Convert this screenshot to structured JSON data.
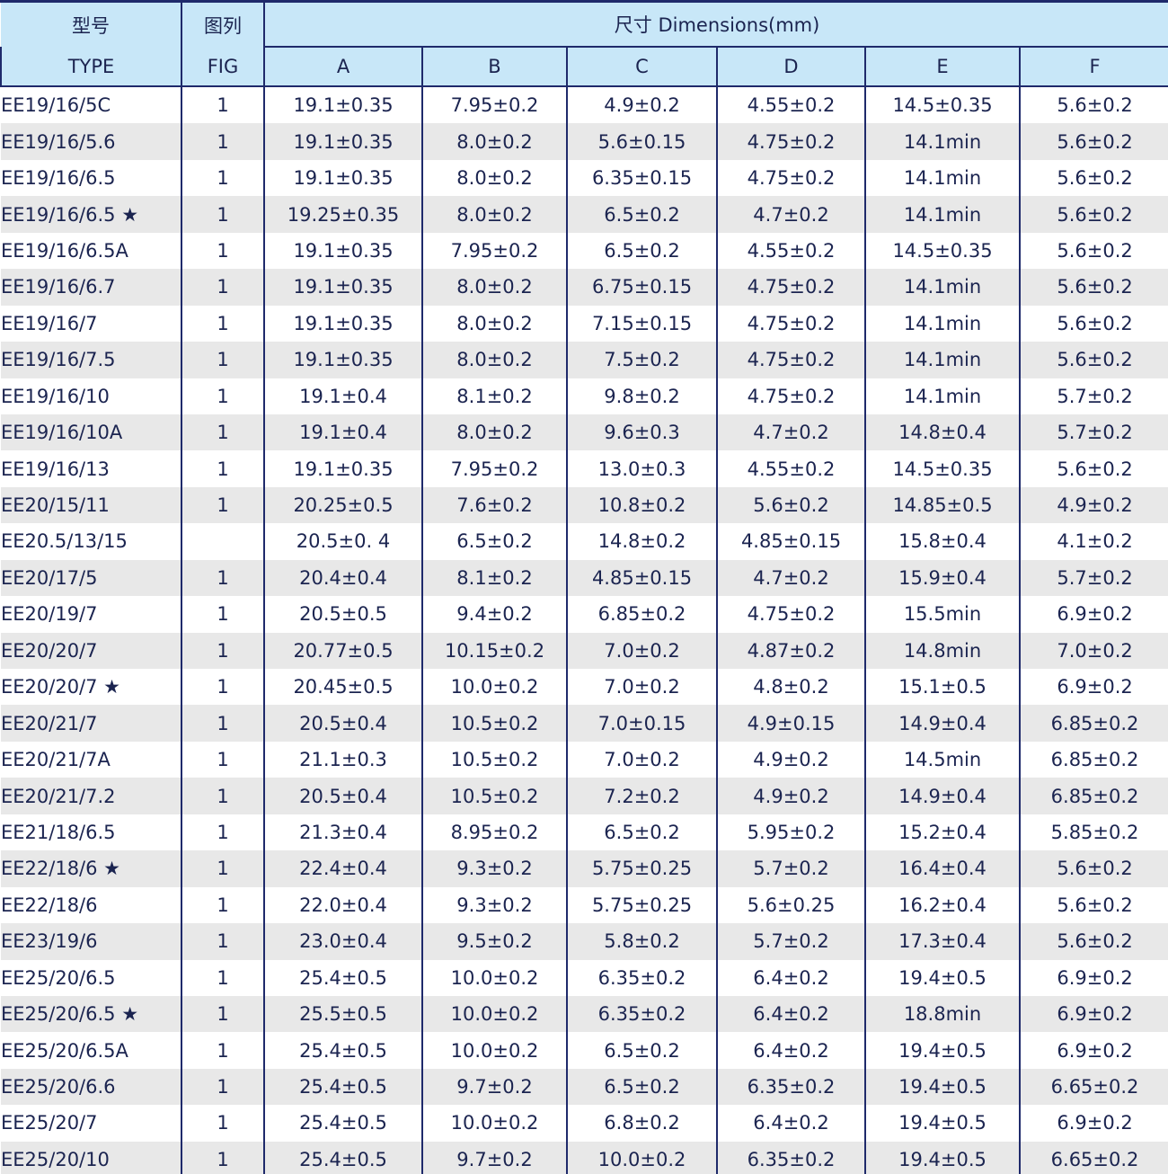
{
  "header": {
    "type_cn": "型号",
    "type_en": "TYPE",
    "fig_cn": "图列",
    "fig_en": "FIG",
    "dimensions": "尺寸 Dimensions(mm)",
    "cols": [
      "A",
      "B",
      "C",
      "D",
      "E",
      "F"
    ]
  },
  "colors": {
    "header_bg": "#c8e7f8",
    "border": "#1f2a6b",
    "text": "#1b2450",
    "alt_row": "#e8e8e8"
  },
  "rows": [
    [
      "EE19/16/5C",
      "1",
      "19.1±0.35",
      "7.95±0.2",
      "4.9±0.2",
      "4.55±0.2",
      "14.5±0.35",
      "5.6±0.2"
    ],
    [
      "EE19/16/5.6",
      "1",
      "19.1±0.35",
      "8.0±0.2",
      "5.6±0.15",
      "4.75±0.2",
      "14.1min",
      "5.6±0.2"
    ],
    [
      "EE19/16/6.5",
      "1",
      "19.1±0.35",
      "8.0±0.2",
      "6.35±0.15",
      "4.75±0.2",
      "14.1min",
      "5.6±0.2"
    ],
    [
      "EE19/16/6.5 ★",
      "1",
      "19.25±0.35",
      "8.0±0.2",
      "6.5±0.2",
      "4.7±0.2",
      "14.1min",
      "5.6±0.2"
    ],
    [
      "EE19/16/6.5A",
      "1",
      "19.1±0.35",
      "7.95±0.2",
      "6.5±0.2",
      "4.55±0.2",
      "14.5±0.35",
      "5.6±0.2"
    ],
    [
      "EE19/16/6.7",
      "1",
      "19.1±0.35",
      "8.0±0.2",
      "6.75±0.15",
      "4.75±0.2",
      "14.1min",
      "5.6±0.2"
    ],
    [
      "EE19/16/7",
      "1",
      "19.1±0.35",
      "8.0±0.2",
      "7.15±0.15",
      "4.75±0.2",
      "14.1min",
      "5.6±0.2"
    ],
    [
      "EE19/16/7.5",
      "1",
      "19.1±0.35",
      "8.0±0.2",
      "7.5±0.2",
      "4.75±0.2",
      "14.1min",
      "5.6±0.2"
    ],
    [
      "EE19/16/10",
      "1",
      "19.1±0.4",
      "8.1±0.2",
      "9.8±0.2",
      "4.75±0.2",
      "14.1min",
      "5.7±0.2"
    ],
    [
      "EE19/16/10A",
      "1",
      "19.1±0.4",
      "8.0±0.2",
      "9.6±0.3",
      "4.7±0.2",
      "14.8±0.4",
      "5.7±0.2"
    ],
    [
      "EE19/16/13",
      "1",
      "19.1±0.35",
      "7.95±0.2",
      "13.0±0.3",
      "4.55±0.2",
      "14.5±0.35",
      "5.6±0.2"
    ],
    [
      "EE20/15/11",
      "1",
      "20.25±0.5",
      "7.6±0.2",
      "10.8±0.2",
      "5.6±0.2",
      "14.85±0.5",
      "4.9±0.2"
    ],
    [
      "EE20.5/13/15",
      "",
      "20.5±0. 4",
      "6.5±0.2",
      "14.8±0.2",
      "4.85±0.15",
      "15.8±0.4",
      "4.1±0.2"
    ],
    [
      "EE20/17/5",
      "1",
      "20.4±0.4",
      "8.1±0.2",
      "4.85±0.15",
      "4.7±0.2",
      "15.9±0.4",
      "5.7±0.2"
    ],
    [
      "EE20/19/7",
      "1",
      "20.5±0.5",
      "9.4±0.2",
      "6.85±0.2",
      "4.75±0.2",
      "15.5min",
      "6.9±0.2"
    ],
    [
      "EE20/20/7",
      "1",
      "20.77±0.5",
      "10.15±0.2",
      "7.0±0.2",
      "4.87±0.2",
      "14.8min",
      "7.0±0.2"
    ],
    [
      "EE20/20/7 ★",
      "1",
      "20.45±0.5",
      "10.0±0.2",
      "7.0±0.2",
      "4.8±0.2",
      "15.1±0.5",
      "6.9±0.2"
    ],
    [
      "EE20/21/7",
      "1",
      "20.5±0.4",
      "10.5±0.2",
      "7.0±0.15",
      "4.9±0.15",
      "14.9±0.4",
      "6.85±0.2"
    ],
    [
      "EE20/21/7A",
      "1",
      "21.1±0.3",
      "10.5±0.2",
      "7.0±0.2",
      "4.9±0.2",
      "14.5min",
      "6.85±0.2"
    ],
    [
      "EE20/21/7.2",
      "1",
      "20.5±0.4",
      "10.5±0.2",
      "7.2±0.2",
      "4.9±0.2",
      "14.9±0.4",
      "6.85±0.2"
    ],
    [
      "EE21/18/6.5",
      "1",
      "21.3±0.4",
      "8.95±0.2",
      "6.5±0.2",
      "5.95±0.2",
      "15.2±0.4",
      "5.85±0.2"
    ],
    [
      "EE22/18/6 ★",
      "1",
      "22.4±0.4",
      "9.3±0.2",
      "5.75±0.25",
      "5.7±0.2",
      "16.4±0.4",
      "5.6±0.2"
    ],
    [
      "EE22/18/6",
      "1",
      "22.0±0.4",
      "9.3±0.2",
      "5.75±0.25",
      "5.6±0.25",
      "16.2±0.4",
      "5.6±0.2"
    ],
    [
      "EE23/19/6",
      "1",
      "23.0±0.4",
      "9.5±0.2",
      "5.8±0.2",
      "5.7±0.2",
      "17.3±0.4",
      "5.6±0.2"
    ],
    [
      "EE25/20/6.5",
      "1",
      "25.4±0.5",
      "10.0±0.2",
      "6.35±0.2",
      "6.4±0.2",
      "19.4±0.5",
      "6.9±0.2"
    ],
    [
      "EE25/20/6.5 ★",
      "1",
      "25.5±0.5",
      "10.0±0.2",
      "6.35±0.2",
      "6.4±0.2",
      "18.8min",
      "6.9±0.2"
    ],
    [
      "EE25/20/6.5A",
      "1",
      "25.4±0.5",
      "10.0±0.2",
      "6.5±0.2",
      "6.4±0.2",
      "19.4±0.5",
      "6.9±0.2"
    ],
    [
      "EE25/20/6.6",
      "1",
      "25.4±0.5",
      "9.7±0.2",
      "6.5±0.2",
      "6.35±0.2",
      "19.4±0.5",
      "6.65±0.2"
    ],
    [
      "EE25/20/7",
      "1",
      "25.4±0.5",
      "10.0±0.2",
      "6.8±0.2",
      "6.4±0.2",
      "19.4±0.5",
      "6.9±0.2"
    ],
    [
      "EE25/20/10",
      "1",
      "25.4±0.5",
      "9.7±0.2",
      "10.0±0.2",
      "6.35±0.2",
      "19.4±0.5",
      "6.65±0.2"
    ]
  ]
}
